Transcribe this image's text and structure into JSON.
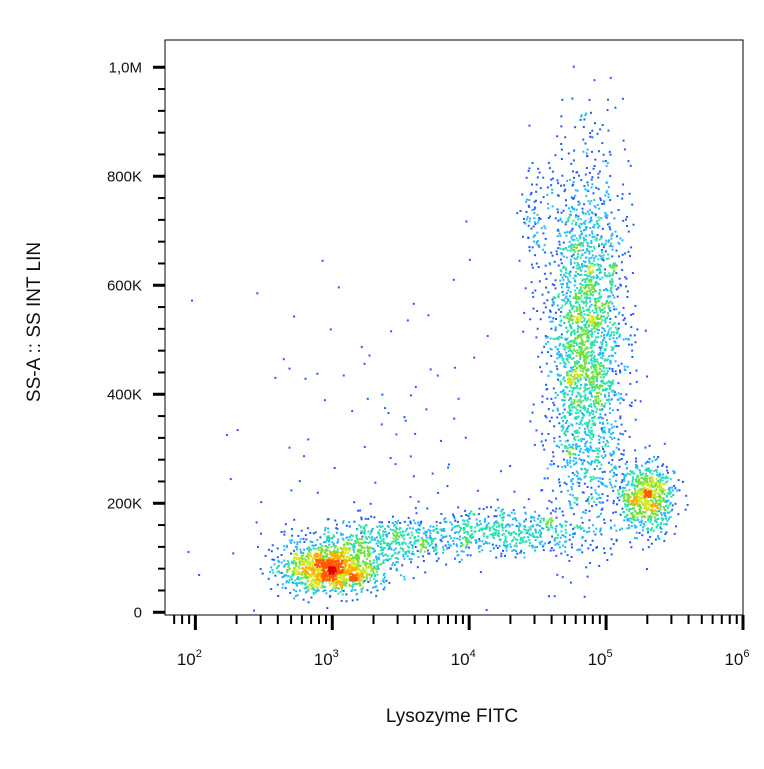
{
  "chart_data": {
    "type": "scatter",
    "style": "density pseudocolor dot plot",
    "xlabel": "Lysozyme FITC",
    "ylabel": "SS-A :: SS INT LIN",
    "x_scale": "log",
    "xlim": [
      60,
      1000000
    ],
    "ylim": [
      -5000,
      1050000
    ],
    "y_ticks": [
      {
        "value": 0,
        "label": "0"
      },
      {
        "value": 200000,
        "label": "200K"
      },
      {
        "value": 400000,
        "label": "400K"
      },
      {
        "value": 600000,
        "label": "600K"
      },
      {
        "value": 800000,
        "label": "800K"
      },
      {
        "value": 1000000,
        "label": "1,0M"
      }
    ],
    "x_ticks": [
      {
        "value": 100,
        "base": "10",
        "exp": "2"
      },
      {
        "value": 1000,
        "base": "10",
        "exp": "3"
      },
      {
        "value": 10000,
        "base": "10",
        "exp": "4"
      },
      {
        "value": 100000,
        "base": "10",
        "exp": "5"
      },
      {
        "value": 1000000,
        "base": "10",
        "exp": "6"
      }
    ],
    "grid": false,
    "density_colors": [
      "#0a18c8",
      "#1f5cff",
      "#1fb8ff",
      "#29e0b0",
      "#6ee23a",
      "#d6e61e",
      "#ffb000",
      "#ff5a00",
      "#e00000"
    ],
    "populations": [
      {
        "center_x": 1000,
        "center_y": 80000,
        "spread_log10_x": 0.18,
        "spread_y": 22000,
        "count": 1300
      },
      {
        "center_x": 2500,
        "center_y": 130000,
        "spread_log10_x": 0.35,
        "spread_y": 22000,
        "count": 500
      },
      {
        "center_x": 18000,
        "center_y": 145000,
        "spread_log10_x": 0.35,
        "spread_y": 22000,
        "count": 500
      },
      {
        "center_x": 72000,
        "center_y": 500000,
        "spread_log10_x": 0.14,
        "spread_y": 160000,
        "count": 2400
      },
      {
        "center_x": 200000,
        "center_y": 210000,
        "spread_log10_x": 0.1,
        "spread_y": 32000,
        "count": 700
      },
      {
        "center_x": 30000,
        "center_y": 720000,
        "spread_log10_x": 0.05,
        "spread_y": 60000,
        "count": 80
      },
      {
        "center_x": 3000,
        "center_y": 300000,
        "spread_log10_x": 0.8,
        "spread_y": 180000,
        "count": 120
      }
    ]
  }
}
